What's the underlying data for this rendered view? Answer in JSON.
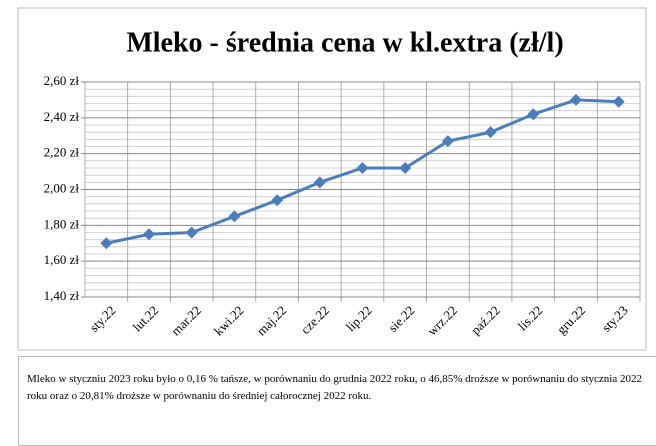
{
  "chart_data": {
    "type": "line",
    "title": "Mleko - średnia cena w kl.extra (zł/l)",
    "categories": [
      "sty.22",
      "lut.22",
      "mar.22",
      "kwi.22",
      "maj.22",
      "cze.22",
      "lip.22",
      "sie.22",
      "wrz.22",
      "paź.22",
      "lis.22",
      "gru.22",
      "sty.23"
    ],
    "series": [
      {
        "name": "Mleko",
        "color": "#4a7ebb",
        "values": [
          1.7,
          1.75,
          1.76,
          1.85,
          1.94,
          2.04,
          2.12,
          2.12,
          2.27,
          2.32,
          2.42,
          2.5,
          2.49
        ]
      }
    ],
    "ylim": [
      1.4,
      2.6
    ],
    "yticks": [
      {
        "value": 1.4,
        "label": "1,40 zł"
      },
      {
        "value": 1.6,
        "label": "1,60 zł"
      },
      {
        "value": 1.8,
        "label": "1,80 zł"
      },
      {
        "value": 2.0,
        "label": "2,00 zł"
      },
      {
        "value": 2.2,
        "label": "2,20 zł"
      },
      {
        "value": 2.4,
        "label": "2,40 zł"
      },
      {
        "value": 2.6,
        "label": "2,60 zł"
      }
    ],
    "grid": true
  },
  "note": "Mleko w styczniu 2023 roku było o 0,16 % tańsze, w porównaniu do grudnia 2022 roku, o 46,85% droższe w porównaniu do stycznia 2022 roku oraz o 20,81%  droższe w porównaniu do średniej całorocznej 2022 roku."
}
